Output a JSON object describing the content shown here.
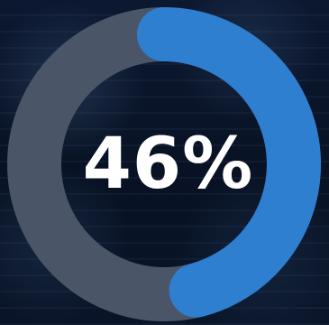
{
  "progress": {
    "label": "46%",
    "value": 0.46
  },
  "colors": {
    "progress": "#2f7fd1",
    "track": "#4a5568",
    "background": "#0a1426",
    "text": "#ffffff"
  }
}
